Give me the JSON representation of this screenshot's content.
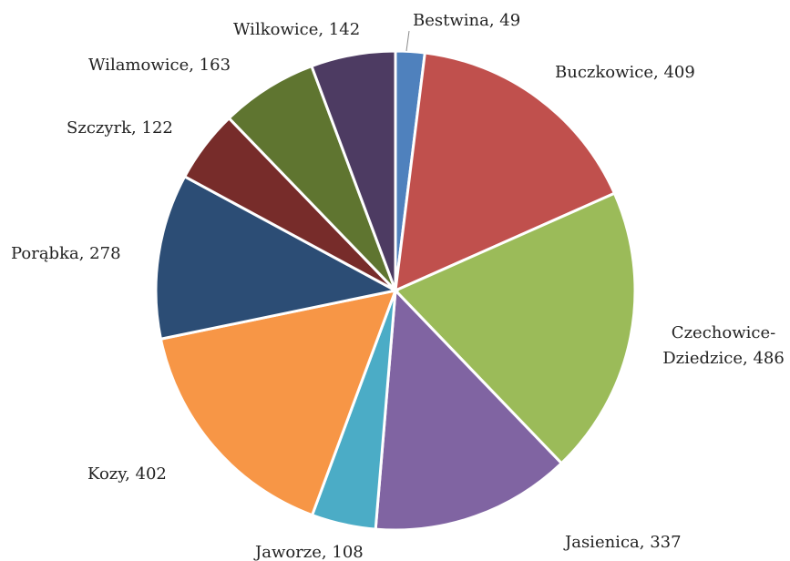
{
  "chart_data": {
    "type": "pie",
    "title": "",
    "start_angle_deg": 0,
    "direction": "clockwise",
    "legend": "none",
    "slices": [
      {
        "label": "Bestwina",
        "value": 49,
        "display": "Bestwina, 49",
        "color": "#4F81BD"
      },
      {
        "label": "Buczkowice",
        "value": 409,
        "display": "Buczkowice, 409",
        "color": "#C0504D"
      },
      {
        "label": "Czechowice-Dziedzice",
        "value": 486,
        "display_lines": [
          "Czechowice-",
          "Dziedzice, 486"
        ],
        "color": "#9BBB59"
      },
      {
        "label": "Jasienica",
        "value": 337,
        "display": "Jasienica, 337",
        "color": "#8064A2"
      },
      {
        "label": "Jaworze",
        "value": 108,
        "display": "Jaworze, 108",
        "color": "#4BACC6"
      },
      {
        "label": "Kozy",
        "value": 402,
        "display": "Kozy, 402",
        "color": "#F79646"
      },
      {
        "label": "Porąbka",
        "value": 278,
        "display": "Porąbka, 278",
        "color": "#2C4D75"
      },
      {
        "label": "Szczyrk",
        "value": 122,
        "display": "Szczyrk, 122",
        "color": "#772C2A"
      },
      {
        "label": "Wilamowice",
        "value": 163,
        "display": "Wilamowice, 163",
        "color": "#5F7530"
      },
      {
        "label": "Wilkowice",
        "value": 142,
        "display": "Wilkowice, 142",
        "color": "#4D3B62"
      }
    ]
  }
}
